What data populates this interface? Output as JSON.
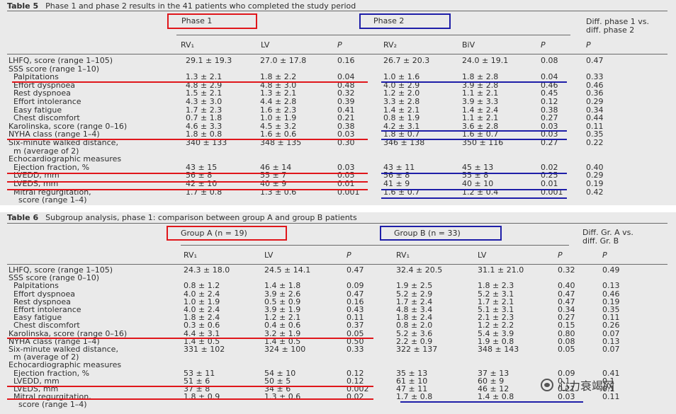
{
  "table5": {
    "label": "Table 5",
    "title": "Phase 1 and phase 2 results in the 41 patients who completed the study period",
    "phase1": "Phase 1",
    "phase2": "Phase 2",
    "diff_header": [
      "Diff. phase 1 vs.",
      "diff. phase 2"
    ],
    "col_headers": [
      "RV₁",
      "LV",
      "P",
      "RV₂",
      "BiV",
      "P",
      "P"
    ],
    "rows": [
      [
        "LHFQ, score (range 1–105)",
        "29.1 ± 19.3",
        "27.0 ± 17.8",
        "0.16",
        "26.7 ± 20.3",
        "24.0 ± 19.1",
        "0.08",
        "0.47"
      ],
      [
        "SSS score (range 1–10)",
        "",
        "",
        "",
        "",
        "",
        "",
        ""
      ],
      [
        "  Palpitations",
        "1.3 ± 2.1",
        "1.8 ± 2.2",
        "0.04",
        "1.0 ± 1.6",
        "1.8 ± 2.8",
        "0.04",
        "0.33"
      ],
      [
        "  Effort dyspnoea",
        "4.8 ± 2.9",
        "4.8 ± 3.0",
        "0.48",
        "4.0 ± 2.9",
        "3.9 ± 2.8",
        "0.46",
        "0.46"
      ],
      [
        "  Rest dyspnoea",
        "1.5 ± 2.1",
        "1.3 ± 2.1",
        "0.32",
        "1.2 ± 2.0",
        "1.1 ± 2.1",
        "0.45",
        "0.36"
      ],
      [
        "  Effort intolerance",
        "4.3 ± 3.0",
        "4.4 ± 2.8",
        "0.39",
        "3.3 ± 2.8",
        "3.9 ± 3.3",
        "0.12",
        "0.29"
      ],
      [
        "  Easy fatigue",
        "1.7 ± 2.3",
        "1.6 ± 2.3",
        "0.41",
        "1.4 ± 2.1",
        "1.4 ± 2.4",
        "0.38",
        "0.34"
      ],
      [
        "  Chest discomfort",
        "0.7 ± 1.8",
        "1.0 ± 1.9",
        "0.21",
        "0.8 ± 1.9",
        "1.1 ± 2.1",
        "0.27",
        "0.44"
      ],
      [
        "Karolinska, score (range 0–16)",
        "4.6 ± 3.3",
        "4.5 ± 3.2",
        "0.38",
        "4.2 ± 3.1",
        "3.6 ± 2.8",
        "0.03",
        "0.11"
      ],
      [
        "NYHA class (range 1–4)",
        "1.8 ± 0.8",
        "1.6 ± 0.6",
        "0.03",
        "1.8 ± 0.7",
        "1.6 ± 0.7",
        "0.03",
        "0.35"
      ],
      [
        "Six-minute walked distance,",
        "340 ± 133",
        "348 ± 135",
        "0.30",
        "346 ± 138",
        "350 ± 116",
        "0.27",
        "0.22"
      ],
      [
        "  m (average of 2)",
        "",
        "",
        "",
        "",
        "",
        "",
        ""
      ],
      [
        "Echocardiographic measures",
        "",
        "",
        "",
        "",
        "",
        "",
        ""
      ],
      [
        "  Ejection fraction, %",
        "43 ± 15",
        "46 ± 14",
        "0.03",
        "43 ± 11",
        "45 ± 13",
        "0.02",
        "0.40"
      ],
      [
        "  LVEDD, mm",
        "56 ± 8",
        "55 ± 7",
        "0.05",
        "56 ± 8",
        "55 ± 8",
        "0.25",
        "0.29"
      ],
      [
        "  LVEDS, mm",
        "42 ± 10",
        "40 ± 9",
        "0.01",
        "41 ± 9",
        "40 ± 10",
        "0.01",
        "0.19"
      ],
      [
        "  Mitral regurgitation,",
        "1.7 ± 0.8",
        "1.3 ± 0.6",
        "0.001",
        "1.6 ± 0.7",
        "1.2 ± 0.4",
        "0.001",
        "0.42"
      ],
      [
        "    score (range 1–4)",
        "",
        "",
        "",
        "",
        "",
        "",
        ""
      ]
    ]
  },
  "table6": {
    "label": "Table 6",
    "title": "Subgroup analysis, phase 1: comparison between group A and group B patients",
    "groupA": "Group A (n = 19)",
    "groupB": "Group B (n = 33)",
    "diff_header": [
      "Diff. Gr. A vs.",
      "diff. Gr. B"
    ],
    "col_headers": [
      "RV₁",
      "LV",
      "P",
      "RV₁",
      "LV",
      "P",
      "P"
    ],
    "rows": [
      [
        "LHFQ, score (range 1–105)",
        "24.3 ± 18.0",
        "24.5 ± 14.1",
        "0.47",
        "32.4 ± 20.5",
        "31.1 ± 21.0",
        "0.32",
        "0.49"
      ],
      [
        "SSS score (range 0–10)",
        "",
        "",
        "",
        "",
        "",
        "",
        ""
      ],
      [
        "  Palpitations",
        "0.8 ± 1.2",
        "1.4 ± 1.8",
        "0.09",
        "1.9 ± 2.5",
        "1.8 ± 2.3",
        "0.40",
        "0.13"
      ],
      [
        "  Effort dyspnoea",
        "4.0 ± 2.4",
        "3.9 ± 2.6",
        "0.47",
        "5.2 ± 2.9",
        "5.2 ± 3.1",
        "0.47",
        "0.46"
      ],
      [
        "  Rest dyspnoea",
        "1.0 ± 1.9",
        "0.5 ± 0.9",
        "0.16",
        "1.7 ± 2.4",
        "1.7 ± 2.1",
        "0.47",
        "0.19"
      ],
      [
        "  Effort intolerance",
        "4.0 ± 2.4",
        "3.9 ± 1.9",
        "0.43",
        "4.8 ± 3.4",
        "5.1 ± 3.1",
        "0.34",
        "0.35"
      ],
      [
        "  Easy fatigue",
        "1.8 ± 2.4",
        "1.2 ± 2.1",
        "0.11",
        "1.8 ± 2.4",
        "2.1 ± 2.3",
        "0.27",
        "0.11"
      ],
      [
        "  Chest discomfort",
        "0.3 ± 0.6",
        "0.4 ± 0.6",
        "0.37",
        "0.8 ± 2.0",
        "1.2 ± 2.2",
        "0.15",
        "0.26"
      ],
      [
        "Karolinska, score (range 0–16)",
        "4.4 ± 3.1",
        "3.2 ± 1.9",
        "0.05",
        "5.2 ± 3.6",
        "5.4 ± 3.9",
        "0.80",
        "0.07"
      ],
      [
        "NYHA class (range 1–4)",
        "1.4 ± 0.5",
        "1.4 ± 0.5",
        "0.50",
        "2.2 ± 0.9",
        "1.9 ± 0.8",
        "0.08",
        "0.13"
      ],
      [
        "Six-minute walked distance,",
        "331 ± 102",
        "324 ± 100",
        "0.33",
        "322 ± 137",
        "348 ± 143",
        "0.05",
        "0.07"
      ],
      [
        "  m (average of 2)",
        "",
        "",
        "",
        "",
        "",
        "",
        ""
      ],
      [
        "Echocardiographic measures",
        "",
        "",
        "",
        "",
        "",
        "",
        ""
      ],
      [
        "  Ejection fraction, %",
        "53 ± 11",
        "54 ± 10",
        "0.12",
        "35 ± 13",
        "37 ± 13",
        "0.09",
        "0.41"
      ],
      [
        "  LVEDD, mm",
        "51 ± 6",
        "50 ± 5",
        "0.12",
        "61 ± 10",
        "60 ± 9",
        "0.1",
        "0.1"
      ],
      [
        "  LVEDS, mm",
        "37 ± 8",
        "34 ± 6",
        "0.002",
        "47 ± 11",
        "46 ± 12",
        "0.21",
        "0.1"
      ],
      [
        "  Mitral regurgitation,",
        "1.8 ± 0.9",
        "1.3 ± 0.6",
        "0.02",
        "1.7 ± 0.8",
        "1.4 ± 0.8",
        "0.03",
        "0.11"
      ],
      [
        "    score (range 1–4)",
        "",
        "",
        "",
        "",
        "",
        "",
        ""
      ]
    ]
  },
  "watermark": "心力衰竭网"
}
